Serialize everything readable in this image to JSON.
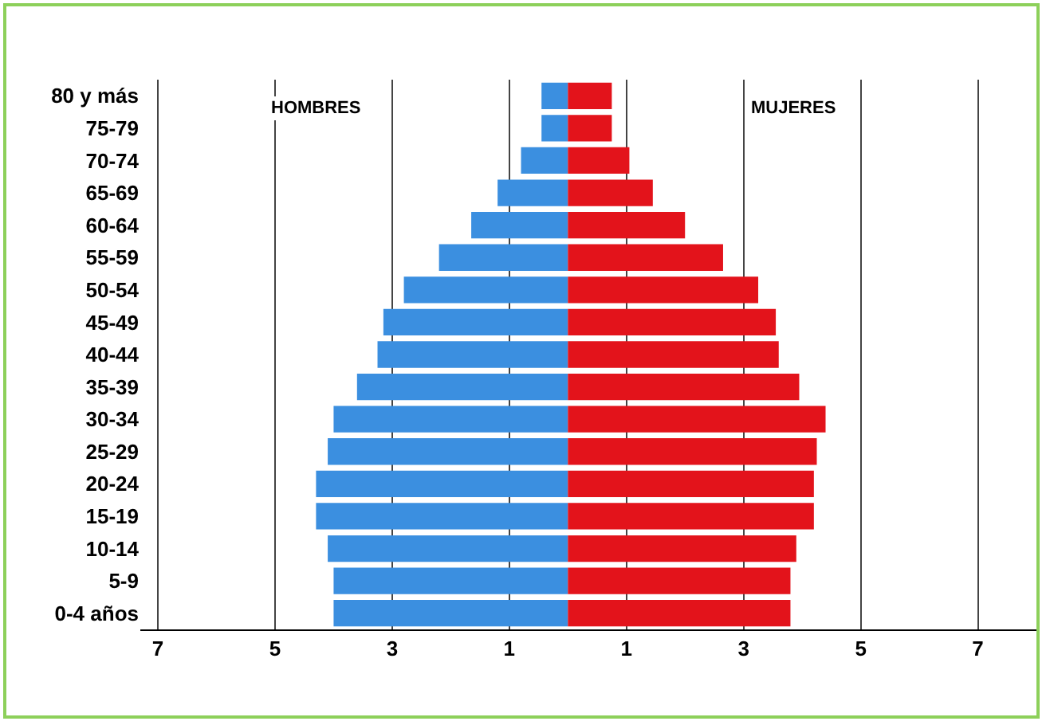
{
  "chart_data": {
    "type": "bar",
    "orientation": "horizontal",
    "stacked": true,
    "categories": [
      "80 y más",
      "75-79",
      "70-74",
      "65-69",
      "60-64",
      "55-59",
      "50-54",
      "45-49",
      "40-44",
      "35-39",
      "30-34",
      "25-29",
      "20-24",
      "15-19",
      "10-14",
      "5-9",
      "0-4 años"
    ],
    "series": [
      {
        "color": "#3b8fe0",
        "values": [
          -0.45,
          -0.45,
          -0.8,
          -1.2,
          -1.65,
          -2.2,
          -2.8,
          -3.15,
          -3.25,
          -3.6,
          -4.0,
          -4.1,
          -4.3,
          -4.3,
          -4.1,
          -4.0,
          -4.0
        ]
      },
      {
        "color": "#e3131b",
        "values": [
          0.75,
          0.75,
          1.05,
          1.45,
          2.0,
          2.65,
          3.25,
          3.55,
          3.6,
          3.95,
          4.4,
          4.25,
          4.2,
          4.2,
          3.9,
          3.8,
          3.8
        ]
      }
    ],
    "xlim": [
      -7.3,
      8
    ],
    "xticks": [
      {
        "value": -7,
        "label": "7"
      },
      {
        "value": -5,
        "label": "5"
      },
      {
        "value": -3,
        "label": "3"
      },
      {
        "value": -1,
        "label": "1"
      },
      1,
      3,
      5,
      7
    ],
    "grid": "x",
    "annotations": [
      "HOMBRES",
      "MUJERES"
    ]
  }
}
